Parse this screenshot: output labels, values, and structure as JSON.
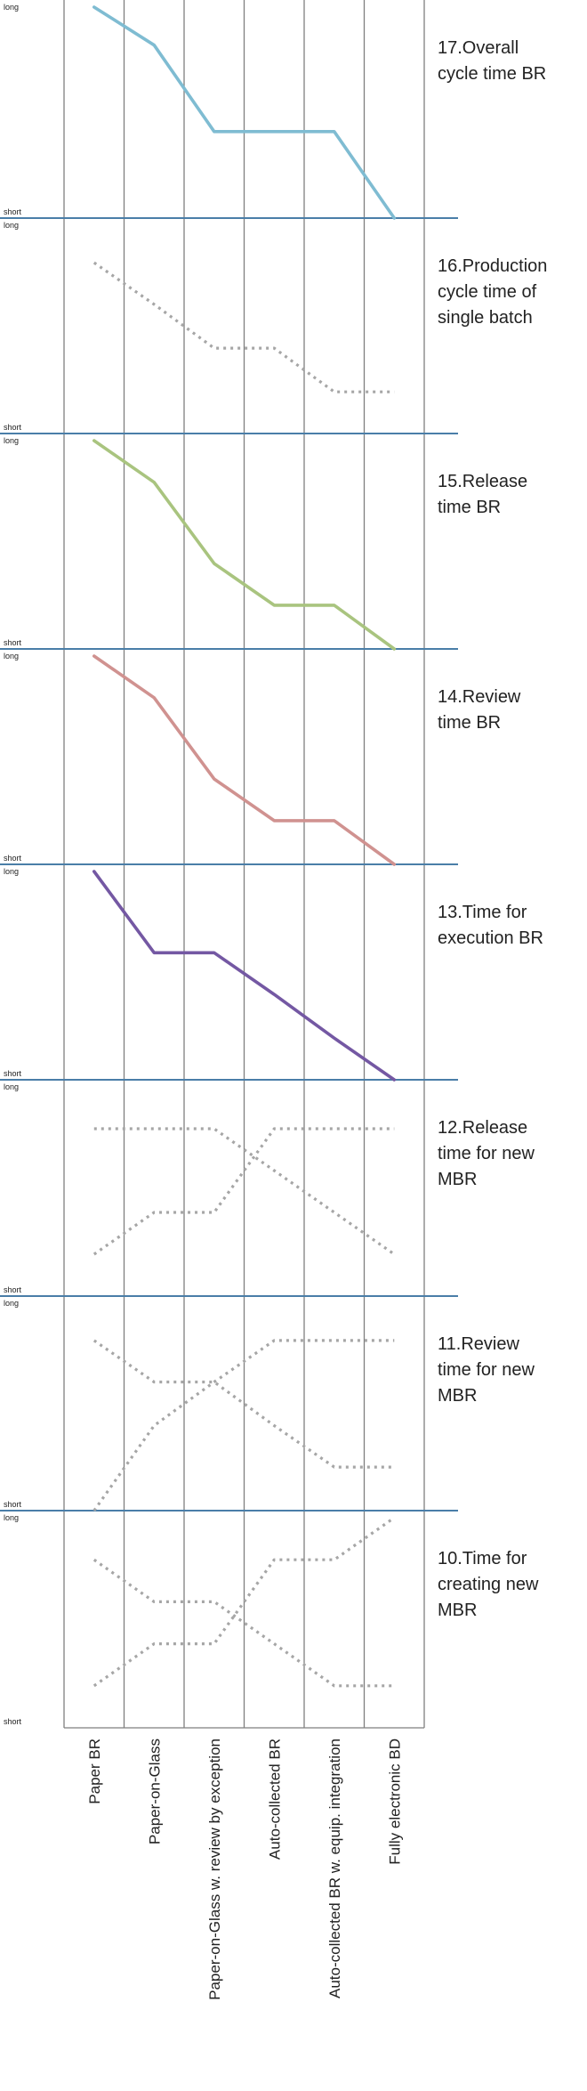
{
  "chart_data": {
    "type": "line",
    "y_scale": {
      "min": 0,
      "max": 1,
      "top_label": "long",
      "bottom_label": "short"
    },
    "categories": [
      "Paper BR",
      "Paper-on-Glass",
      "Paper-on-Glass w. review by exception",
      "Auto-collected BR",
      "Auto-collected BR w. equip. integration",
      "Fully electronic BD"
    ],
    "panels": [
      {
        "title": "17.Overall cycle time  BR",
        "series": [
          {
            "style": "solid",
            "color": "#7fbcd2",
            "values": [
              1.0,
              0.82,
              0.41,
              0.41,
              0.41,
              0.0
            ]
          }
        ]
      },
      {
        "title": "16.Production cycle time of single batch",
        "series": [
          {
            "style": "dotted",
            "color": "#a6a6a6",
            "values": [
              0.82,
              0.62,
              0.41,
              0.41,
              0.2,
              0.2
            ]
          }
        ]
      },
      {
        "title": "15.Release time BR",
        "series": [
          {
            "style": "solid",
            "color": "#a9c47f",
            "values": [
              1.0,
              0.8,
              0.41,
              0.21,
              0.21,
              0.0
            ]
          }
        ]
      },
      {
        "title": "14.Review time BR",
        "series": [
          {
            "style": "solid",
            "color": "#d09290",
            "values": [
              1.0,
              0.8,
              0.41,
              0.21,
              0.21,
              0.0
            ]
          }
        ]
      },
      {
        "title": "13.Time for execution BR",
        "series": [
          {
            "style": "solid",
            "color": "#7458a3",
            "values": [
              1.0,
              0.61,
              0.61,
              0.41,
              0.2,
              0.0
            ]
          }
        ]
      },
      {
        "title": "12.Release time for new MBR",
        "series": [
          {
            "style": "dotted",
            "color": "#a6a6a6",
            "values": [
              0.8,
              0.8,
              0.8,
              0.6,
              0.4,
              0.2
            ]
          },
          {
            "style": "dotted",
            "color": "#a6a6a6",
            "values": [
              0.2,
              0.4,
              0.4,
              0.8,
              0.8,
              0.8
            ]
          }
        ]
      },
      {
        "title": "11.Review time for new MBR",
        "series": [
          {
            "style": "dotted",
            "color": "#a6a6a6",
            "values": [
              0.82,
              0.62,
              0.62,
              0.41,
              0.21,
              0.21
            ]
          },
          {
            "style": "dotted",
            "color": "#a6a6a6",
            "values": [
              0.0,
              0.41,
              0.62,
              0.82,
              0.82,
              0.82
            ]
          }
        ]
      },
      {
        "title": "10.Time for creating new MBR",
        "series": [
          {
            "style": "dotted",
            "color": "#a6a6a6",
            "values": [
              0.8,
              0.6,
              0.6,
              0.4,
              0.2,
              0.2
            ]
          },
          {
            "style": "dotted",
            "color": "#a6a6a6",
            "values": [
              0.2,
              0.4,
              0.4,
              0.8,
              0.8,
              1.0
            ]
          }
        ]
      }
    ],
    "grid": true,
    "gridline_color": "#7f7f7f",
    "separator_color": "#4a7ea8"
  }
}
